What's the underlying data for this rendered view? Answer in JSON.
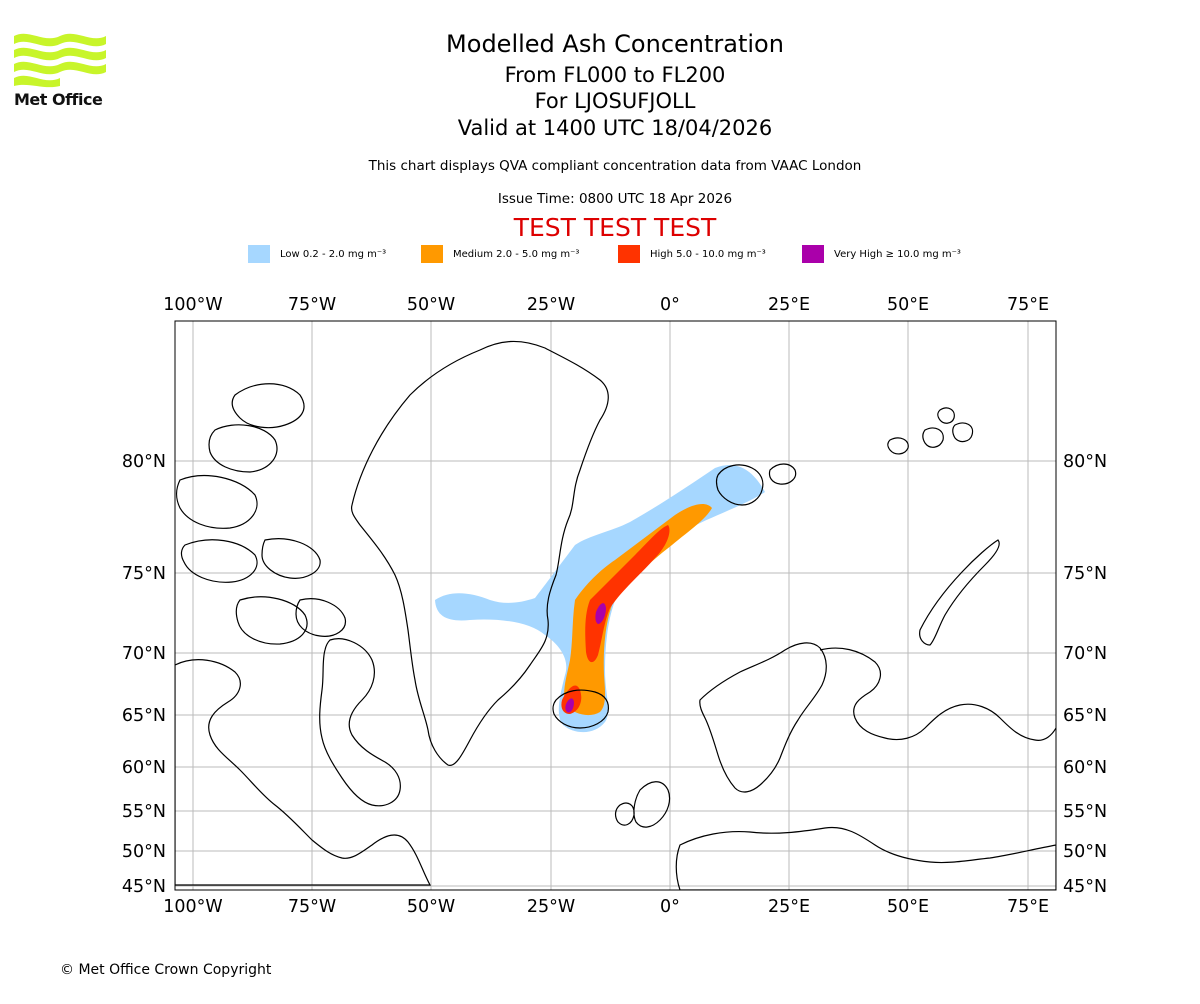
{
  "branding": {
    "logo_text": "Met Office",
    "logo_color": "#c8f52a"
  },
  "header": {
    "title": "Modelled Ash Concentration",
    "levels": "From FL000 to FL200",
    "volcano": "For LJOSUFJOLL",
    "valid": "Valid at 1400 UTC 18/04/2026",
    "description": "This chart displays QVA compliant concentration data from VAAC London",
    "issue_time": "Issue Time: 0800 UTC 18 Apr 2026",
    "test_banner": "TEST TEST TEST"
  },
  "legend": [
    {
      "label": "Low 0.2 - 2.0 mg m⁻³",
      "color": "#a6d7ff"
    },
    {
      "label": "Medium 2.0 - 5.0 mg m⁻³",
      "color": "#ff9900"
    },
    {
      "label": "High 5.0 - 10.0 mg m⁻³",
      "color": "#ff3300"
    },
    {
      "label": "Very High ≥ 10.0 mg m⁻³",
      "color": "#aa00aa"
    }
  ],
  "map": {
    "projection": "polar-like",
    "lon_ticks": [
      "100°W",
      "75°W",
      "50°W",
      "25°W",
      "0°",
      "25°E",
      "50°E",
      "75°E"
    ],
    "lat_ticks": [
      "80°N",
      "75°N",
      "70°N",
      "65°N",
      "60°N",
      "55°N",
      "50°N",
      "45°N"
    ],
    "grid": true,
    "coastline_color": "#000000",
    "grid_color": "#bbbbbb"
  },
  "footer": {
    "copyright": "© Met Office Crown Copyright"
  }
}
